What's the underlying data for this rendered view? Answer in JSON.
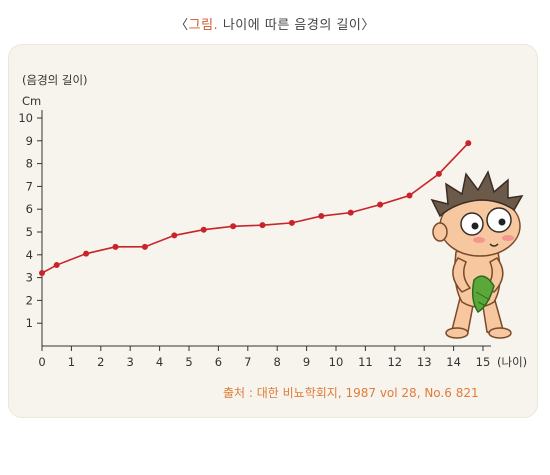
{
  "caption": {
    "open": "〈",
    "label": "그림.",
    "text": "나이에 따른 음경의 길이",
    "close": "〉"
  },
  "source_note": "출처 : 대한 비뇨학회지, 1987 vol 28, No.6 821",
  "colors": {
    "line": "#c8242a",
    "axis": "#333333",
    "panel": "#f7f4ed",
    "source": "#e07c3a",
    "caption_label": "#d0572a"
  },
  "illustration": "cartoon-boy-icon",
  "chart_data": {
    "type": "line",
    "title": "",
    "ylabel": "(음경의 길이)",
    "yunit": "Cm",
    "xlabel": "(나이)",
    "xlim": [
      0,
      15
    ],
    "ylim": [
      0,
      10
    ],
    "x_ticks": [
      0,
      1,
      2,
      3,
      4,
      5,
      6,
      7,
      8,
      9,
      10,
      11,
      12,
      13,
      14,
      15
    ],
    "y_ticks": [
      1,
      2,
      3,
      4,
      5,
      6,
      7,
      8,
      9,
      10
    ],
    "grid": false,
    "series": [
      {
        "points": [
          {
            "x": 0.0,
            "y": 3.2
          },
          {
            "x": 0.5,
            "y": 3.55
          },
          {
            "x": 1.5,
            "y": 4.05
          },
          {
            "x": 2.5,
            "y": 4.35
          },
          {
            "x": 3.5,
            "y": 4.35
          },
          {
            "x": 4.5,
            "y": 4.85
          },
          {
            "x": 5.5,
            "y": 5.1
          },
          {
            "x": 6.5,
            "y": 5.25
          },
          {
            "x": 7.5,
            "y": 5.3
          },
          {
            "x": 8.5,
            "y": 5.4
          },
          {
            "x": 9.5,
            "y": 5.7
          },
          {
            "x": 10.5,
            "y": 5.85
          },
          {
            "x": 11.5,
            "y": 6.2
          },
          {
            "x": 12.5,
            "y": 6.6
          },
          {
            "x": 13.5,
            "y": 7.55
          },
          {
            "x": 14.5,
            "y": 8.9
          }
        ]
      }
    ]
  }
}
